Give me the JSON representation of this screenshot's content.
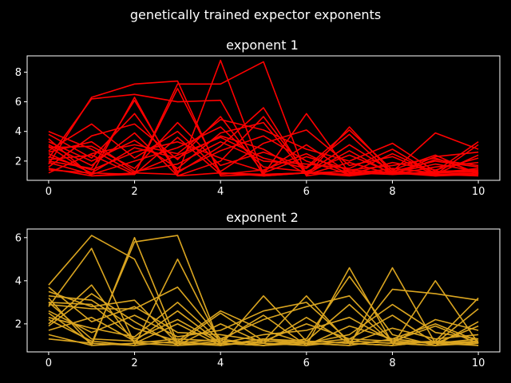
{
  "figure": {
    "suptitle": "genetically trained expector exponents",
    "background": "#000000",
    "foreground": "#ffffff"
  },
  "chart_data": [
    {
      "type": "line",
      "title": "exponent 1",
      "color": "#ff0000",
      "xlabel": "",
      "ylabel": "",
      "xlim": [
        -0.5,
        10.5
      ],
      "ylim": [
        0.7,
        9.1
      ],
      "xticks": [
        0,
        2,
        4,
        6,
        8,
        10
      ],
      "yticks": [
        2,
        4,
        6,
        8
      ],
      "grid": false,
      "x": [
        0,
        1,
        2,
        3,
        4,
        5,
        6,
        7,
        8,
        9,
        10
      ],
      "series": [
        {
          "values": [
            1.8,
            6.3,
            7.2,
            7.4,
            1.0,
            1.1,
            1.2,
            1.3,
            1.1,
            1.2,
            1.3
          ]
        },
        {
          "values": [
            2.2,
            6.2,
            6.5,
            6.0,
            6.1,
            1.0,
            1.2,
            1.1,
            1.3,
            1.0,
            1.2
          ]
        },
        {
          "values": [
            2.5,
            1.2,
            1.1,
            7.2,
            7.2,
            8.7,
            1.0,
            1.4,
            1.2,
            1.1,
            1.0
          ]
        },
        {
          "values": [
            1.5,
            1.0,
            1.2,
            1.1,
            8.8,
            1.1,
            1.2,
            1.0,
            1.3,
            1.1,
            1.2
          ]
        },
        {
          "values": [
            3.0,
            1.1,
            6.3,
            1.0,
            1.2,
            1.1,
            5.2,
            1.2,
            1.1,
            1.3,
            1.4
          ]
        },
        {
          "values": [
            2.0,
            1.5,
            6.1,
            1.2,
            3.0,
            5.6,
            1.0,
            4.3,
            1.2,
            1.0,
            1.1
          ]
        },
        {
          "values": [
            3.5,
            1.0,
            1.1,
            6.9,
            1.2,
            1.0,
            1.2,
            1.1,
            1.3,
            3.9,
            2.8
          ]
        },
        {
          "values": [
            1.2,
            2.5,
            3.1,
            2.5,
            4.8,
            4.1,
            2.8,
            2.0,
            3.2,
            1.3,
            3.3
          ]
        },
        {
          "values": [
            4.0,
            2.8,
            1.2,
            2.4,
            3.6,
            2.2,
            1.5,
            3.8,
            1.1,
            2.1,
            1.7
          ]
        },
        {
          "values": [
            2.7,
            4.5,
            2.2,
            4.0,
            1.3,
            3.2,
            4.1,
            1.7,
            2.3,
            1.1,
            2.4
          ]
        },
        {
          "values": [
            1.6,
            3.7,
            4.5,
            2.1,
            5.0,
            1.2,
            2.3,
            1.4,
            1.7,
            2.2,
            1.2
          ]
        },
        {
          "values": [
            3.3,
            2.0,
            3.4,
            1.5,
            3.9,
            4.6,
            1.1,
            2.7,
            1.1,
            1.6,
            1.9
          ]
        },
        {
          "values": [
            2.3,
            1.4,
            2.6,
            3.3,
            2.2,
            1.3,
            3.1,
            1.2,
            2.5,
            1.2,
            1.5
          ]
        },
        {
          "values": [
            2.9,
            3.0,
            1.5,
            4.6,
            1.7,
            2.6,
            1.6,
            4.1,
            1.4,
            2.4,
            1.1
          ]
        },
        {
          "values": [
            3.8,
            2.2,
            5.2,
            1.3,
            2.7,
            3.7,
            2.0,
            1.1,
            1.9,
            1.4,
            2.2
          ]
        },
        {
          "values": [
            1.9,
            1.1,
            2.0,
            2.9,
            4.3,
            1.6,
            1.3,
            2.4,
            1.2,
            1.8,
            1.3
          ]
        },
        {
          "values": [
            2.6,
            3.3,
            1.3,
            1.8,
            3.3,
            2.0,
            1.8,
            1.5,
            2.8,
            1.1,
            3.1
          ]
        },
        {
          "values": [
            3.1,
            1.7,
            3.9,
            1.0,
            2.0,
            5.0,
            1.2,
            3.1,
            1.3,
            2.0,
            1.6
          ]
        },
        {
          "values": [
            2.1,
            2.4,
            1.1,
            3.6,
            1.1,
            1.4,
            2.5,
            1.1,
            1.5,
            1.2,
            1.4
          ]
        },
        {
          "values": [
            1.4,
            1.2,
            2.9,
            2.2,
            3.7,
            2.8,
            1.1,
            1.9,
            1.1,
            2.3,
            2.6
          ]
        }
      ]
    },
    {
      "type": "line",
      "title": "exponent 2",
      "color": "#daa520",
      "xlabel": "",
      "ylabel": "",
      "xlim": [
        -0.5,
        10.5
      ],
      "ylim": [
        0.7,
        6.4
      ],
      "xticks": [
        0,
        2,
        4,
        6,
        8,
        10
      ],
      "yticks": [
        2,
        4,
        6
      ],
      "grid": false,
      "x": [
        0,
        1,
        2,
        3,
        4,
        5,
        6,
        7,
        8,
        9,
        10
      ],
      "series": [
        {
          "values": [
            3.8,
            6.1,
            5.0,
            1.0,
            1.1,
            1.0,
            1.2,
            1.1,
            1.0,
            1.2,
            1.1
          ]
        },
        {
          "values": [
            1.3,
            1.1,
            5.8,
            6.1,
            1.0,
            1.2,
            1.1,
            1.0,
            1.3,
            1.1,
            1.2
          ]
        },
        {
          "values": [
            2.8,
            5.5,
            1.1,
            1.3,
            1.2,
            1.1,
            1.0,
            1.2,
            1.1,
            1.0,
            1.1
          ]
        },
        {
          "values": [
            3.2,
            1.0,
            6.0,
            1.1,
            1.0,
            1.3,
            1.2,
            1.1,
            1.0,
            1.2,
            1.0
          ]
        },
        {
          "values": [
            2.2,
            1.2,
            1.0,
            5.0,
            1.1,
            1.0,
            1.1,
            1.3,
            1.2,
            1.1,
            1.3
          ]
        },
        {
          "values": [
            1.5,
            1.0,
            1.1,
            1.0,
            1.2,
            1.1,
            1.0,
            4.6,
            1.1,
            1.0,
            1.2
          ]
        },
        {
          "values": [
            2.5,
            1.1,
            1.0,
            1.2,
            1.0,
            1.3,
            1.1,
            1.0,
            4.6,
            1.1,
            1.0
          ]
        },
        {
          "values": [
            3.0,
            1.3,
            1.2,
            1.1,
            1.3,
            1.0,
            1.2,
            1.1,
            1.0,
            4.0,
            1.1
          ]
        },
        {
          "values": [
            3.5,
            2.8,
            3.1,
            1.1,
            2.5,
            1.2,
            3.3,
            1.1,
            3.6,
            3.4,
            3.1
          ]
        },
        {
          "values": [
            2.0,
            3.8,
            1.1,
            2.0,
            1.0,
            3.3,
            1.2,
            2.9,
            1.1,
            1.2,
            3.2
          ]
        },
        {
          "values": [
            2.9,
            2.7,
            2.7,
            3.7,
            1.3,
            2.2,
            2.8,
            3.3,
            1.2,
            1.9,
            1.1
          ]
        },
        {
          "values": [
            1.7,
            2.3,
            1.2,
            2.6,
            1.1,
            1.0,
            1.3,
            4.2,
            1.5,
            1.0,
            2.1
          ]
        },
        {
          "values": [
            3.3,
            3.1,
            1.8,
            1.2,
            2.6,
            1.7,
            1.1,
            1.5,
            2.9,
            1.6,
            1.3
          ]
        },
        {
          "values": [
            2.6,
            1.6,
            2.4,
            1.4,
            1.7,
            2.6,
            3.0,
            1.2,
            1.1,
            2.2,
            1.7
          ]
        },
        {
          "values": [
            3.0,
            2.9,
            1.3,
            2.2,
            1.1,
            1.5,
            1.7,
            2.3,
            1.2,
            1.1,
            2.7
          ]
        },
        {
          "values": [
            1.9,
            3.4,
            2.1,
            1.0,
            2.0,
            1.1,
            2.3,
            1.1,
            1.8,
            1.3,
            1.5
          ]
        },
        {
          "values": [
            2.3,
            1.8,
            1.4,
            3.0,
            1.2,
            2.4,
            1.0,
            1.9,
            1.3,
            2.0,
            1.2
          ]
        },
        {
          "values": [
            3.7,
            2.1,
            2.8,
            1.6,
            1.5,
            1.2,
            2.0,
            1.3,
            2.4,
            1.1,
            1.9
          ]
        }
      ]
    }
  ]
}
